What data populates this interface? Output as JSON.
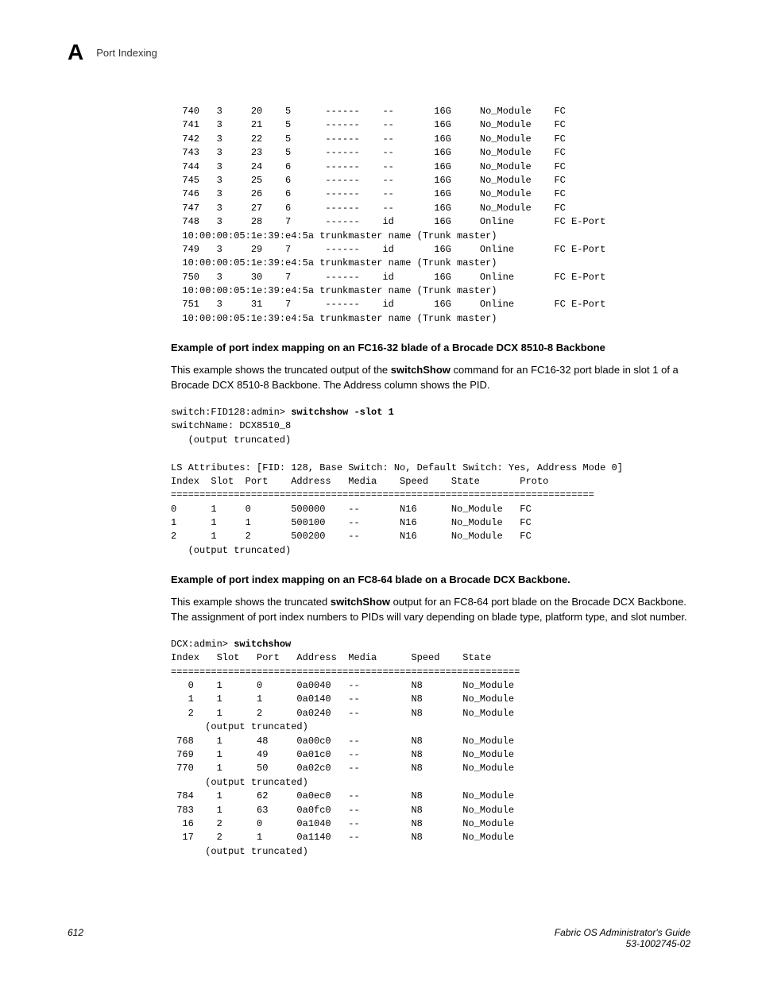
{
  "header": {
    "appendix_letter": "A",
    "title": "Port Indexing"
  },
  "code1": "  740   3     20    5      ------    --       16G     No_Module    FC\n  741   3     21    5      ------    --       16G     No_Module    FC\n  742   3     22    5      ------    --       16G     No_Module    FC\n  743   3     23    5      ------    --       16G     No_Module    FC\n  744   3     24    6      ------    --       16G     No_Module    FC\n  745   3     25    6      ------    --       16G     No_Module    FC\n  746   3     26    6      ------    --       16G     No_Module    FC\n  747   3     27    6      ------    --       16G     No_Module    FC\n  748   3     28    7      ------    id       16G     Online       FC E-Port\n  10:00:00:05:1e:39:e4:5a trunkmaster name (Trunk master)\n  749   3     29    7      ------    id       16G     Online       FC E-Port\n  10:00:00:05:1e:39:e4:5a trunkmaster name (Trunk master)\n  750   3     30    7      ------    id       16G     Online       FC E-Port\n  10:00:00:05:1e:39:e4:5a trunkmaster name (Trunk master)\n  751   3     31    7      ------    id       16G     Online       FC E-Port\n  10:00:00:05:1e:39:e4:5a trunkmaster name (Trunk master)",
  "heading1": "Example of port index mapping on an FC16-32 blade of a Brocade DCX 8510-8 Backbone",
  "para1_a": "This example shows the truncated output of the ",
  "para1_bold": "switchShow",
  "para1_b": " command for an FC16-32 port blade in slot 1 of a Brocade DCX 8510-8 Backbone. The Address column shows the PID.",
  "code2_prefix": "switch:FID128:admin> ",
  "code2_cmd": "switchshow -slot 1",
  "code2_body": "switchName: DCX8510_8\n   (output truncated)\n\nLS Attributes: [FID: 128, Base Switch: No, Default Switch: Yes, Address Mode 0]\nIndex  Slot  Port    Address   Media    Speed    State       Proto\n==========================================================================\n0      1     0       500000    --       N16      No_Module   FC\n1      1     1       500100    --       N16      No_Module   FC\n2      1     2       500200    --       N16      No_Module   FC\n   (output truncated)",
  "heading2": "Example of port index mapping on an FC8-64 blade on a Brocade DCX Backbone.",
  "para2_a": "This example shows the truncated ",
  "para2_bold": "switchShow",
  "para2_b": " output for an FC8-64 port blade on the Brocade DCX Backbone. The assignment of port index numbers to PIDs will vary depending on blade type, platform type, and slot number.",
  "code3_prefix": "DCX:admin> ",
  "code3_cmd": "switchshow",
  "code3_body": "Index   Slot   Port   Address  Media      Speed    State\n=============================================================\n   0    1      0      0a0040   --         N8       No_Module\n   1    1      1      0a0140   --         N8       No_Module\n   2    1      2      0a0240   --         N8       No_Module\n      (output truncated)\n 768    1      48     0a00c0   --         N8       No_Module\n 769    1      49     0a01c0   --         N8       No_Module\n 770    1      50     0a02c0   --         N8       No_Module\n      (output truncated)\n 784    1      62     0a0ec0   --         N8       No_Module\n 783    1      63     0a0fc0   --         N8       No_Module\n  16    2      0      0a1040   --         N8       No_Module\n  17    2      1      0a1140   --         N8       No_Module\n      (output truncated)",
  "footer": {
    "page_number": "612",
    "doc_title": "Fabric OS Administrator's Guide",
    "doc_number": "53-1002745-02"
  }
}
